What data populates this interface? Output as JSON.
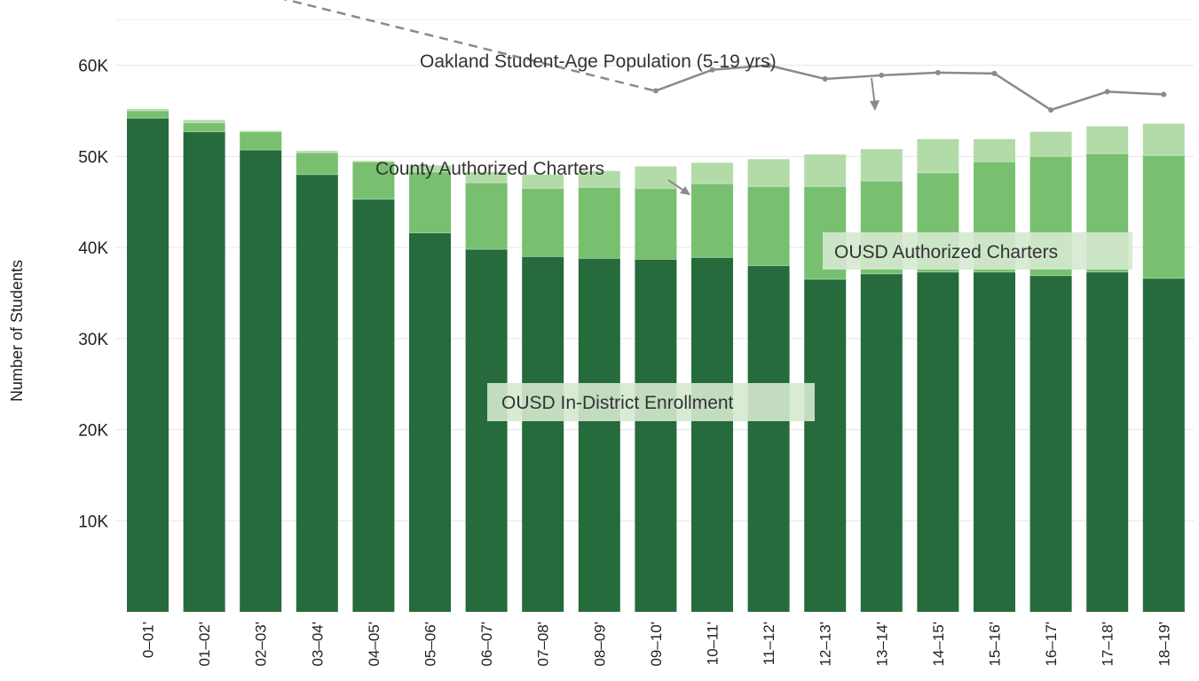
{
  "chart_data": {
    "type": "bar",
    "stacked": true,
    "ylabel": "Number of Students",
    "xlabel": "",
    "ylim": [
      0,
      66000
    ],
    "yticks": [
      10000,
      20000,
      30000,
      40000,
      50000,
      60000
    ],
    "ytick_labels": [
      "10K",
      "20K",
      "30K",
      "40K",
      "50K",
      "60K"
    ],
    "grid": true,
    "categories": [
      "0–01'",
      "01–02'",
      "02–03'",
      "03–04'",
      "04–05'",
      "05–06'",
      "06–07'",
      "07–08'",
      "08–09'",
      "09–10'",
      "10–11'",
      "11–12'",
      "12–13'",
      "13–14'",
      "14–15'",
      "15–16'",
      "16–17'",
      "17–18'",
      "18–19'"
    ],
    "series": [
      {
        "name": "OUSD In-District Enrollment",
        "color": "#256b3b",
        "values": [
          54200,
          52700,
          50700,
          48000,
          45300,
          41600,
          39800,
          39000,
          38800,
          38700,
          38900,
          38000,
          36500,
          37100,
          37300,
          37300,
          36900,
          37300,
          36600
        ]
      },
      {
        "name": "OUSD Authorized Charters",
        "color": "#78c070",
        "values": [
          800,
          1000,
          2000,
          2400,
          4100,
          6700,
          7300,
          7500,
          7800,
          7800,
          8100,
          8700,
          10200,
          10200,
          10900,
          12100,
          13100,
          13000,
          13500
        ]
      },
      {
        "name": "County Authorized Charters",
        "color": "#b2dba8",
        "values": [
          200,
          300,
          100,
          200,
          100,
          700,
          1200,
          1500,
          1800,
          2400,
          2300,
          3000,
          3500,
          3500,
          3700,
          2500,
          2700,
          3000,
          3500
        ]
      }
    ],
    "population_line": {
      "name": "Oakland Student-Age Population (5-19 yrs)",
      "color": "#8a8a8a",
      "dashed_values": [
        71000,
        57200
      ],
      "dashed_indices": [
        0,
        9
      ],
      "solid_indices": [
        9,
        10,
        11,
        12,
        13,
        14,
        15,
        16,
        17,
        18
      ],
      "solid_values": [
        57200,
        59500,
        60000,
        58500,
        58900,
        59200,
        59100,
        55100,
        57100,
        56800
      ]
    },
    "annotations": {
      "population": "Oakland Student-Age Population (5-19 yrs)",
      "county": "County Authorized Charters",
      "ousd_charters": "OUSD Authorized Charters",
      "in_district": "OUSD In-District Enrollment"
    }
  }
}
